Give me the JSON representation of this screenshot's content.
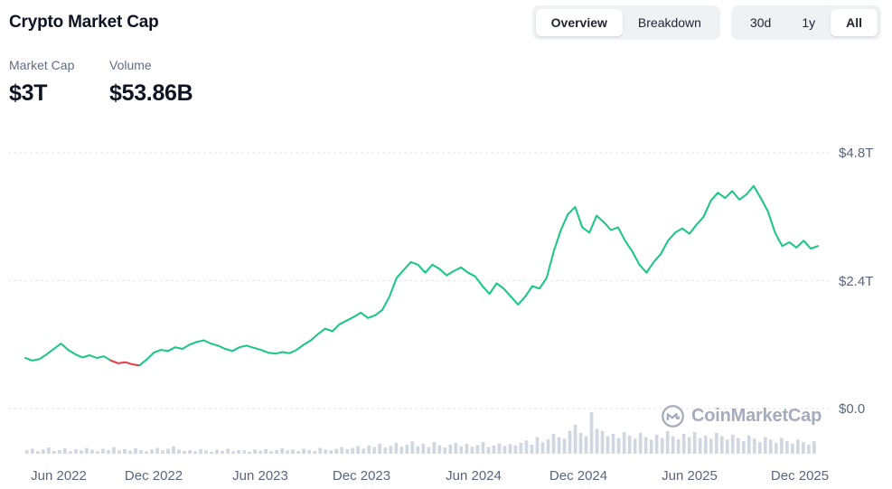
{
  "header": {
    "title": "Crypto Market Cap",
    "view_toggle": [
      {
        "label": "Overview",
        "selected": true
      },
      {
        "label": "Breakdown",
        "selected": false
      }
    ],
    "range_toggle": [
      {
        "label": "30d",
        "selected": false
      },
      {
        "label": "1y",
        "selected": false
      },
      {
        "label": "All",
        "selected": true
      }
    ]
  },
  "stats": {
    "market_cap": {
      "label": "Market Cap",
      "value": "$3T"
    },
    "volume": {
      "label": "Volume",
      "value": "$53.86B"
    }
  },
  "watermark": {
    "text": "CoinMarketCap"
  },
  "chart_data": {
    "type": "line",
    "title": "Crypto Market Cap",
    "unit": "$T",
    "ylim": [
      0,
      4.8
    ],
    "grid": "horizontal-dotted",
    "legend": "off",
    "y_gridlines": [
      4.8,
      2.4,
      0
    ],
    "y_axis_labels": [
      "$4.8T",
      "$2.4T",
      "$0.0"
    ],
    "x_axis_labels": [
      "Jun 2022",
      "Dec 2022",
      "Jun 2023",
      "Dec 2023",
      "Jun 2024",
      "Dec 2024",
      "Jun 2025",
      "Dec 2025"
    ],
    "x_range": [
      "May 2022",
      "Dec 2025"
    ],
    "colors": {
      "line": "#16c784",
      "down": "#ea3943",
      "volume": "#d0d7e1",
      "grid": "#e6e9ee",
      "background": "#ffffff"
    },
    "down_segment": {
      "start": 12,
      "end": 16
    },
    "series": [
      {
        "name": "Market Cap ($T)",
        "values": [
          0.95,
          0.9,
          0.93,
          1.02,
          1.12,
          1.22,
          1.1,
          1.02,
          0.96,
          1.0,
          0.95,
          0.98,
          0.9,
          0.85,
          0.87,
          0.83,
          0.81,
          0.92,
          1.05,
          1.1,
          1.08,
          1.15,
          1.12,
          1.2,
          1.25,
          1.28,
          1.22,
          1.18,
          1.12,
          1.08,
          1.15,
          1.18,
          1.14,
          1.1,
          1.05,
          1.03,
          1.06,
          1.04,
          1.1,
          1.2,
          1.28,
          1.4,
          1.5,
          1.45,
          1.58,
          1.65,
          1.72,
          1.8,
          1.7,
          1.75,
          1.85,
          2.1,
          2.45,
          2.6,
          2.75,
          2.7,
          2.55,
          2.7,
          2.62,
          2.5,
          2.58,
          2.65,
          2.55,
          2.48,
          2.3,
          2.15,
          2.35,
          2.25,
          2.1,
          1.95,
          2.1,
          2.3,
          2.25,
          2.45,
          2.95,
          3.35,
          3.65,
          3.78,
          3.4,
          3.3,
          3.62,
          3.5,
          3.35,
          3.4,
          3.15,
          2.95,
          2.7,
          2.55,
          2.75,
          2.9,
          3.15,
          3.3,
          3.38,
          3.28,
          3.45,
          3.6,
          3.9,
          4.05,
          3.95,
          4.08,
          3.92,
          4.02,
          4.18,
          3.95,
          3.7,
          3.3,
          3.05,
          3.12,
          3.02,
          3.15,
          3.0,
          3.05
        ]
      }
    ],
    "volume": {
      "name": "Volume (relative, 0-100)",
      "values": [
        8,
        12,
        6,
        10,
        15,
        7,
        9,
        13,
        6,
        11,
        8,
        14,
        10,
        6,
        12,
        9,
        16,
        8,
        11,
        7,
        13,
        9,
        6,
        10,
        14,
        8,
        12,
        18,
        10,
        7,
        9,
        6,
        11,
        8,
        5,
        10,
        7,
        12,
        6,
        9,
        8,
        5,
        10,
        7,
        11,
        6,
        9,
        13,
        8,
        10,
        6,
        12,
        9,
        7,
        14,
        10,
        8,
        12,
        16,
        11,
        14,
        18,
        12,
        20,
        16,
        24,
        15,
        19,
        26,
        17,
        22,
        30,
        18,
        24,
        16,
        28,
        20,
        15,
        22,
        26,
        18,
        24,
        17,
        21,
        28,
        16,
        20,
        25,
        18,
        23,
        20,
        26,
        32,
        22,
        40,
        28,
        35,
        48,
        40,
        36,
        55,
        70,
        50,
        42,
        100,
        60,
        55,
        42,
        48,
        38,
        52,
        44,
        36,
        50,
        40,
        34,
        46,
        38,
        55,
        42,
        35,
        48,
        40,
        52,
        38,
        44,
        36,
        50,
        42,
        34,
        46,
        38,
        30,
        44,
        36,
        28,
        40,
        34,
        26,
        38,
        30,
        24,
        34,
        28,
        22,
        30
      ]
    }
  }
}
